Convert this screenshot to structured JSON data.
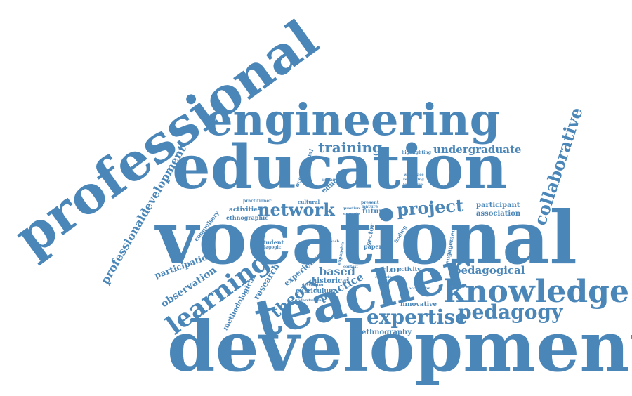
{
  "colors": {
    "text": "#4a86b8",
    "background": "#ffffff"
  },
  "words": [
    {
      "text": "professional"
    },
    {
      "text": "engineering"
    },
    {
      "text": "education"
    },
    {
      "text": "vocational"
    },
    {
      "text": "development"
    },
    {
      "text": "teacher"
    },
    {
      "text": "knowledge"
    },
    {
      "text": "learning"
    },
    {
      "text": "expertise"
    },
    {
      "text": "pedagogy"
    },
    {
      "text": "collaborative"
    },
    {
      "text": "professionaldevelopment"
    },
    {
      "text": "network"
    },
    {
      "text": "project"
    },
    {
      "text": "training"
    },
    {
      "text": "undergraduate"
    },
    {
      "text": "theory"
    },
    {
      "text": "pedagogical"
    },
    {
      "text": "observation"
    },
    {
      "text": "based"
    },
    {
      "text": "practice"
    },
    {
      "text": "participation"
    },
    {
      "text": "methodological"
    },
    {
      "text": "research"
    },
    {
      "text": "experience"
    },
    {
      "text": "historical"
    },
    {
      "text": "curriculum"
    },
    {
      "text": "actor"
    },
    {
      "text": "activity"
    },
    {
      "text": "innovative"
    },
    {
      "text": "ethnography"
    },
    {
      "text": "participant"
    },
    {
      "text": "association"
    },
    {
      "text": "educator"
    },
    {
      "text": "occupational"
    },
    {
      "text": "activities"
    },
    {
      "text": "ethnographic"
    },
    {
      "text": "compulsory"
    },
    {
      "text": "practitioner"
    },
    {
      "text": "cultural"
    },
    {
      "text": "student"
    },
    {
      "text": "pedagogic"
    },
    {
      "text": "future"
    },
    {
      "text": "engagement"
    },
    {
      "text": "highlighting"
    },
    {
      "text": "sector"
    },
    {
      "text": "paper"
    },
    {
      "text": "present"
    },
    {
      "text": "nature"
    },
    {
      "text": "workplace"
    },
    {
      "text": "rethinking"
    },
    {
      "text": "technique"
    },
    {
      "text": "finding"
    },
    {
      "text": "expansive"
    },
    {
      "text": "developing"
    },
    {
      "text": "capturing"
    },
    {
      "text": "occupation"
    },
    {
      "text": "understanding"
    },
    {
      "text": "identifying"
    },
    {
      "text": "question"
    },
    {
      "text": "example"
    },
    {
      "text": "context"
    },
    {
      "text": "approach"
    }
  ]
}
